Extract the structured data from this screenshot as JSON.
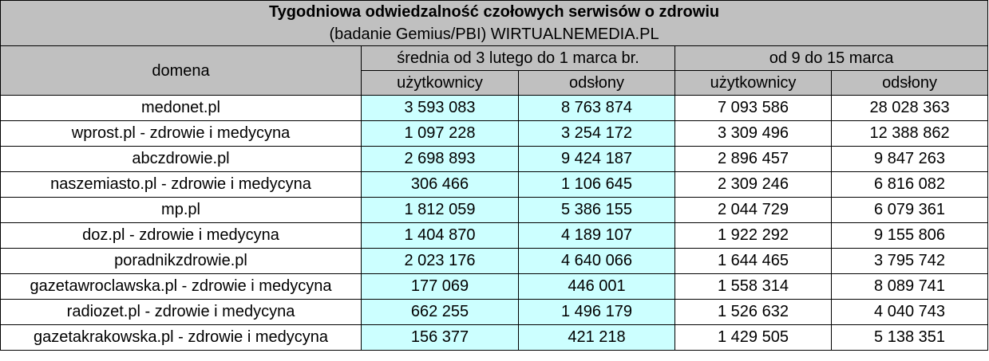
{
  "title": "Tygodniowa odwiedzalność czołowych serwisów o zdrowiu",
  "subtitle": "(badanie Gemius/PBI) WIRTUALNEMEDIA.PL",
  "header": {
    "domain": "domena",
    "period1": "średnia od 3 lutego do 1 marca br.",
    "period2": "od 9 do 15 marca",
    "users": "użytkownicy",
    "views": "odsłony"
  },
  "colors": {
    "header_bg": "#c0c0c0",
    "highlight_bg": "#ccffff"
  },
  "chart_data": {
    "type": "table",
    "title": "Tygodniowa odwiedzalność czołowych serwisów o zdrowiu",
    "subtitle": "(badanie Gemius/PBI) WIRTUALNEMEDIA.PL",
    "columns": [
      "domena",
      "średnia od 3 lutego do 1 marca br. – użytkownicy",
      "średnia od 3 lutego do 1 marca br. – odsłony",
      "od 9 do 15 marca – użytkownicy",
      "od 9 do 15 marca – odsłony"
    ],
    "rows": [
      [
        "medonet.pl",
        "3 593 083",
        "8 763 874",
        "7 093 586",
        "28 028 363"
      ],
      [
        "wprost.pl - zdrowie i medycyna",
        "1 097 228",
        "3 254 172",
        "3 309 496",
        "12 388 862"
      ],
      [
        "abczdrowie.pl",
        "2 698 893",
        "9 424 187",
        "2 896 457",
        "9 847 263"
      ],
      [
        "naszemiasto.pl - zdrowie i medycyna",
        "306 466",
        "1 106 645",
        "2 309 246",
        "6 816 082"
      ],
      [
        "mp.pl",
        "1 812 059",
        "5 386 155",
        "2 044 729",
        "6 079 361"
      ],
      [
        "doz.pl - zdrowie i medycyna",
        "1 404 870",
        "4 189 107",
        "1 922 292",
        "9 155 806"
      ],
      [
        "poradnikzdrowie.pl",
        "2 023 176",
        "4 640 066",
        "1 644 465",
        "3 795 742"
      ],
      [
        "gazetawroclawska.pl - zdrowie i medycyna",
        "177 069",
        "446 001",
        "1 558 314",
        "8 089 741"
      ],
      [
        "radiozet.pl - zdrowie i medycyna",
        "662 255",
        "1 496 179",
        "1 526 632",
        "4 040 743"
      ],
      [
        "gazetakrakowska.pl - zdrowie i medycyna",
        "156 377",
        "421 218",
        "1 429 505",
        "5 138 351"
      ]
    ]
  }
}
